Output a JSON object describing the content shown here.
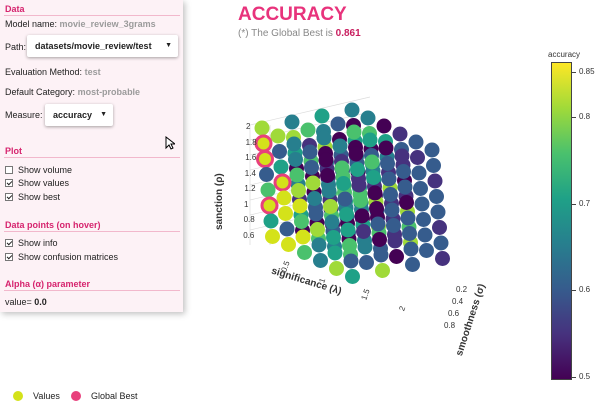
{
  "panel": {
    "data_title": "Data",
    "model_label": "Model name:",
    "model_value": "movie_review_3grams",
    "path_label": "Path:",
    "path_value": "datasets/movie_review/test",
    "eval_label": "Evaluation Method:",
    "eval_value": "test",
    "category_label": "Default Category:",
    "category_value": "most-probable",
    "measure_label": "Measure:",
    "measure_value": "accuracy",
    "plot_title": "Plot",
    "show_volume": "Show volume",
    "show_values": "Show values",
    "show_best": "Show best",
    "hover_title": "Data points (on hover)",
    "show_info": "Show info",
    "show_confusion": "Show confusion matrices",
    "alpha_title": "Alpha (α) parameter",
    "alpha_label": "value=",
    "alpha_value": "0.0"
  },
  "header": {
    "title": "ACCURACY",
    "subtitle_prefix": "(*) The Global Best is",
    "best_value": "0.861"
  },
  "colorbar": {
    "title": "accuracy",
    "ticks": [
      "0.8",
      "0.7",
      "0.6",
      "0.5"
    ],
    "top_tick": "0.85"
  },
  "legend": {
    "values_label": "Values",
    "best_label": "Global Best"
  },
  "axes": {
    "sanction": "sanction (ρ)",
    "significance": "significance (λ)",
    "smoothness": "smoothness (σ)",
    "sanction_ticks": [
      "2",
      "1.8",
      "1.6",
      "1.4",
      "1.2",
      "1",
      "0.8",
      "0.6"
    ],
    "significance_ticks": [
      "0.5",
      "1",
      "1.5",
      "2"
    ],
    "smoothness_ticks": [
      "0.2",
      "0.4",
      "0.6",
      "0.8"
    ]
  },
  "chart_data": {
    "type": "scatter",
    "title": "ACCURACY",
    "x_axis": "significance (λ)",
    "y_axis": "smoothness (σ)",
    "z_axis": "sanction (ρ)",
    "color_scale": "viridis",
    "color_range": [
      0.5,
      0.86
    ],
    "global_best": 0.861,
    "colors": {
      "high": "#d4e21a",
      "best_ring": "#e8407c",
      "low": "#440154"
    }
  }
}
